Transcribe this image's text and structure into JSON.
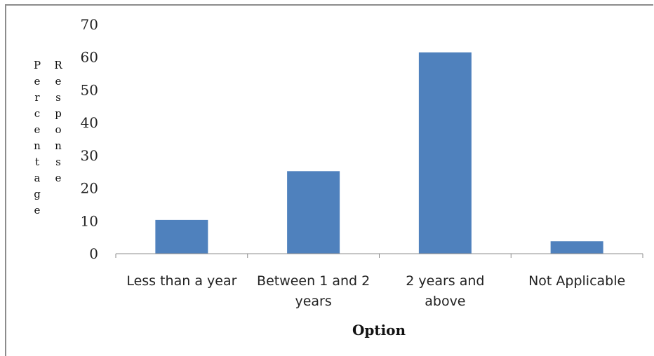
{
  "chart_data": {
    "type": "bar",
    "categories": [
      "Less than a year",
      "Between 1 and 2 years",
      "2 years and above",
      "Not Applicable"
    ],
    "category_lines": [
      [
        "Less than a year"
      ],
      [
        "Between 1 and 2",
        "years"
      ],
      [
        "2 years and",
        "above"
      ],
      [
        "Not Applicable"
      ]
    ],
    "values": [
      10.3,
      25.2,
      61.5,
      3.8
    ],
    "xlabel": "Option",
    "ylabel": "Percentage Response",
    "ylim": [
      0,
      70
    ],
    "yticks": [
      0,
      10,
      20,
      30,
      40,
      50,
      60,
      70
    ],
    "grid": false,
    "legend": "none",
    "colors": {
      "bar": "#4F81BD",
      "axis": "#8c8c8c"
    }
  }
}
